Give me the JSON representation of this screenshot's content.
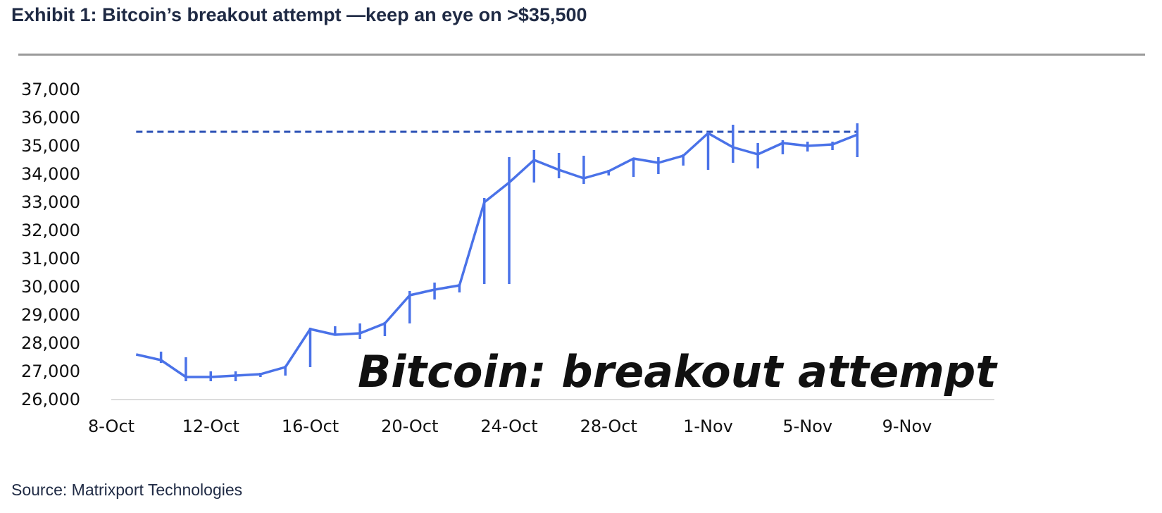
{
  "header": {
    "title": "Exhibit 1: Bitcoin’s breakout attempt —keep an eye on >$35,500"
  },
  "footer": {
    "source": "Source: Matrixport Technologies"
  },
  "colors": {
    "series": "#4a72e8",
    "threshold": "#2a4fb5",
    "title": "#1f2a44"
  },
  "chart_data": {
    "type": "line",
    "title": "",
    "xlabel": "",
    "ylabel": "",
    "annotation": "Bitcoin: breakout attempt",
    "ylim": [
      26000,
      37000
    ],
    "yticks": [
      "37,000",
      "36,000",
      "35,000",
      "34,000",
      "33,000",
      "32,000",
      "31,000",
      "30,000",
      "29,000",
      "28,000",
      "27,000",
      "26,000"
    ],
    "xlim": [
      "2023-10-08",
      "2023-11-09"
    ],
    "xticks": [
      "8-Oct",
      "12-Oct",
      "16-Oct",
      "20-Oct",
      "24-Oct",
      "28-Oct",
      "1-Nov",
      "5-Nov",
      "9-Nov"
    ],
    "grid": false,
    "threshold": 35500,
    "series": [
      {
        "values": [
          {
            "date": "2023-10-09",
            "low": 27600,
            "high": 27600,
            "close": 27600
          },
          {
            "date": "2023-10-10",
            "low": 27300,
            "high": 27700,
            "close": 27400
          },
          {
            "date": "2023-10-11",
            "low": 26650,
            "high": 27500,
            "close": 26800
          },
          {
            "date": "2023-10-12",
            "low": 26650,
            "high": 27000,
            "close": 26800
          },
          {
            "date": "2023-10-13",
            "low": 26650,
            "high": 27000,
            "close": 26850
          },
          {
            "date": "2023-10-14",
            "low": 26800,
            "high": 26950,
            "close": 26900
          },
          {
            "date": "2023-10-15",
            "low": 26850,
            "high": 27200,
            "close": 27150
          },
          {
            "date": "2023-10-16",
            "low": 27150,
            "high": 28550,
            "close": 28500
          },
          {
            "date": "2023-10-17",
            "low": 28300,
            "high": 28600,
            "close": 28300
          },
          {
            "date": "2023-10-18",
            "low": 28150,
            "high": 28700,
            "close": 28350
          },
          {
            "date": "2023-10-19",
            "low": 28250,
            "high": 28750,
            "close": 28700
          },
          {
            "date": "2023-10-20",
            "low": 28700,
            "high": 29850,
            "close": 29700
          },
          {
            "date": "2023-10-21",
            "low": 29550,
            "high": 30150,
            "close": 29900
          },
          {
            "date": "2023-10-22",
            "low": 29800,
            "high": 30100,
            "close": 30050
          },
          {
            "date": "2023-10-23",
            "low": 30100,
            "high": 33150,
            "close": 33000
          },
          {
            "date": "2023-10-24",
            "low": 30100,
            "high": 34600,
            "close": 33700
          },
          {
            "date": "2023-10-25",
            "low": 33700,
            "high": 34850,
            "close": 34500
          },
          {
            "date": "2023-10-26",
            "low": 33850,
            "high": 34750,
            "close": 34150
          },
          {
            "date": "2023-10-27",
            "low": 33650,
            "high": 34650,
            "close": 33850
          },
          {
            "date": "2023-10-28",
            "low": 33950,
            "high": 34150,
            "close": 34100
          },
          {
            "date": "2023-10-29",
            "low": 33900,
            "high": 34550,
            "close": 34550
          },
          {
            "date": "2023-10-30",
            "low": 34000,
            "high": 34600,
            "close": 34400
          },
          {
            "date": "2023-10-31",
            "low": 34300,
            "high": 34700,
            "close": 34650
          },
          {
            "date": "2023-11-01",
            "low": 34150,
            "high": 35500,
            "close": 35450
          },
          {
            "date": "2023-11-02",
            "low": 34400,
            "high": 35750,
            "close": 34950
          },
          {
            "date": "2023-11-03",
            "low": 34200,
            "high": 35100,
            "close": 34700
          },
          {
            "date": "2023-11-04",
            "low": 34700,
            "high": 35200,
            "close": 35100
          },
          {
            "date": "2023-11-05",
            "low": 34800,
            "high": 35150,
            "close": 35000
          },
          {
            "date": "2023-11-06",
            "low": 34850,
            "high": 35150,
            "close": 35050
          },
          {
            "date": "2023-11-07",
            "low": 34600,
            "high": 35800,
            "close": 35400
          }
        ]
      }
    ]
  }
}
